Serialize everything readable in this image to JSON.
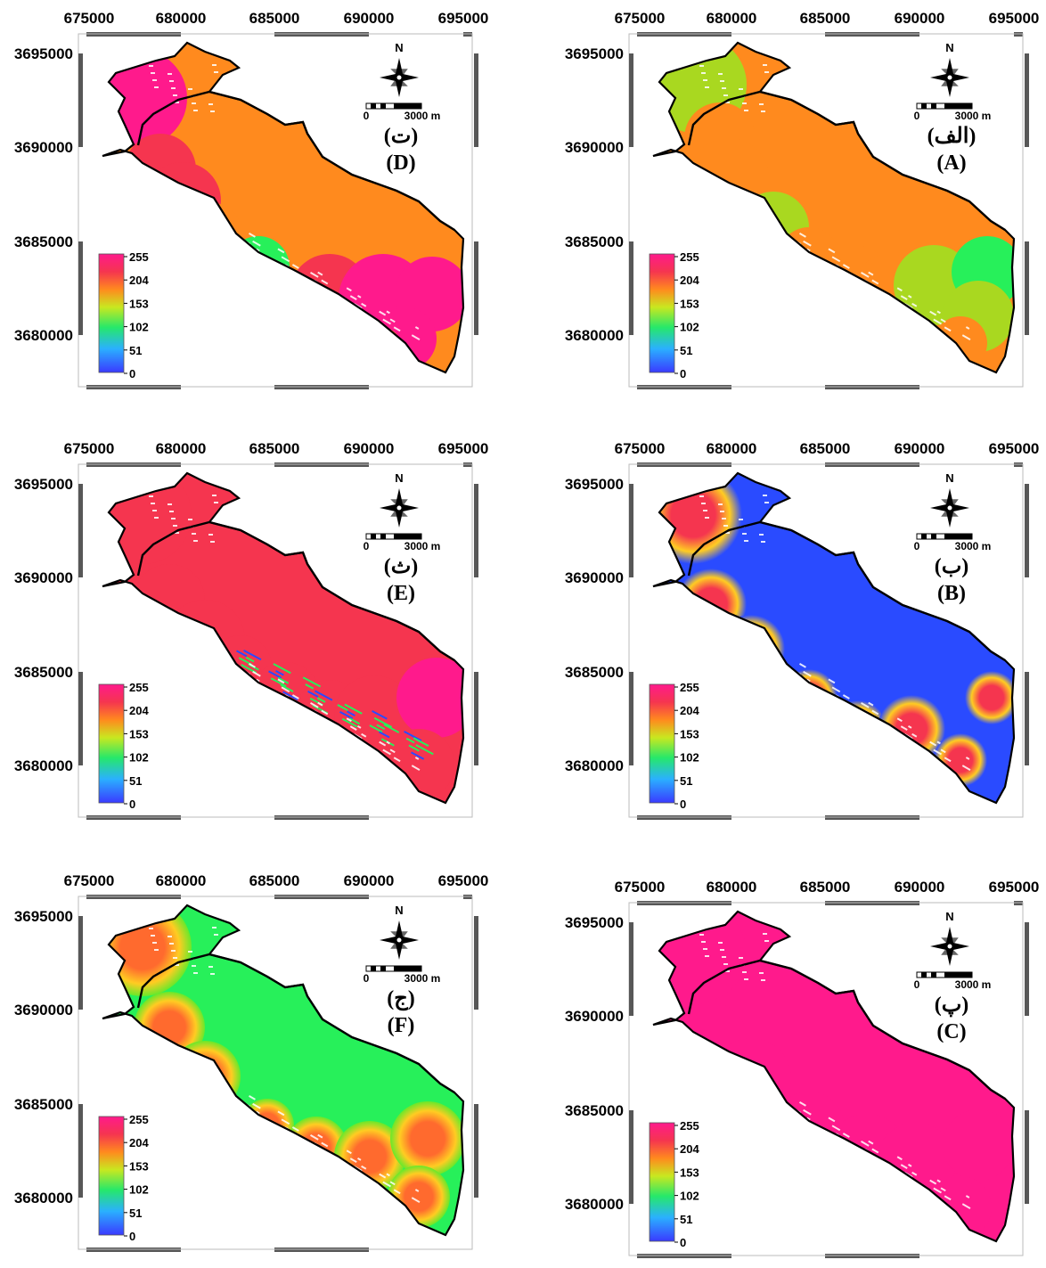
{
  "figure": {
    "x_tick_labels": [
      "675000",
      "680000",
      "685000",
      "690000",
      "695000"
    ],
    "y_tick_labels": [
      "3695000",
      "3690000",
      "3685000",
      "3680000"
    ],
    "legend_ticks": [
      "255",
      "204",
      "153",
      "102",
      "51",
      "0"
    ],
    "north_label": "N",
    "scale_zero": "0",
    "scale_length": "3000 m",
    "colors": {
      "magenta": "#ff1a8c",
      "red": "#f5354f",
      "orange": "#ff8a1e",
      "yellow_green": "#a9d820",
      "green": "#27f05a",
      "blue": "#2a4bff",
      "boundary": "#000000",
      "frame": "#575757"
    },
    "panels": [
      {
        "id": "D",
        "persian": "(ت)",
        "latin": "(D)",
        "pattern": "uniform circles, mostly magenta and red, some orange and green"
      },
      {
        "id": "A",
        "persian": "(الف)",
        "latin": "(A)",
        "pattern": "orange and yellow-green with red bands"
      },
      {
        "id": "E",
        "persian": "(ث)",
        "latin": "(E)",
        "pattern": "speckled red/magenta texture with green and blue streaks"
      },
      {
        "id": "B",
        "persian": "(ب)",
        "latin": "(B)",
        "pattern": "radial circles: red centers fading to blue rims"
      },
      {
        "id": "F",
        "persian": "(ج)",
        "latin": "(F)",
        "pattern": "orange/red cores with green halos"
      },
      {
        "id": "C",
        "persian": "(پ)",
        "latin": "(C)",
        "pattern": "almost uniform magenta"
      }
    ]
  }
}
